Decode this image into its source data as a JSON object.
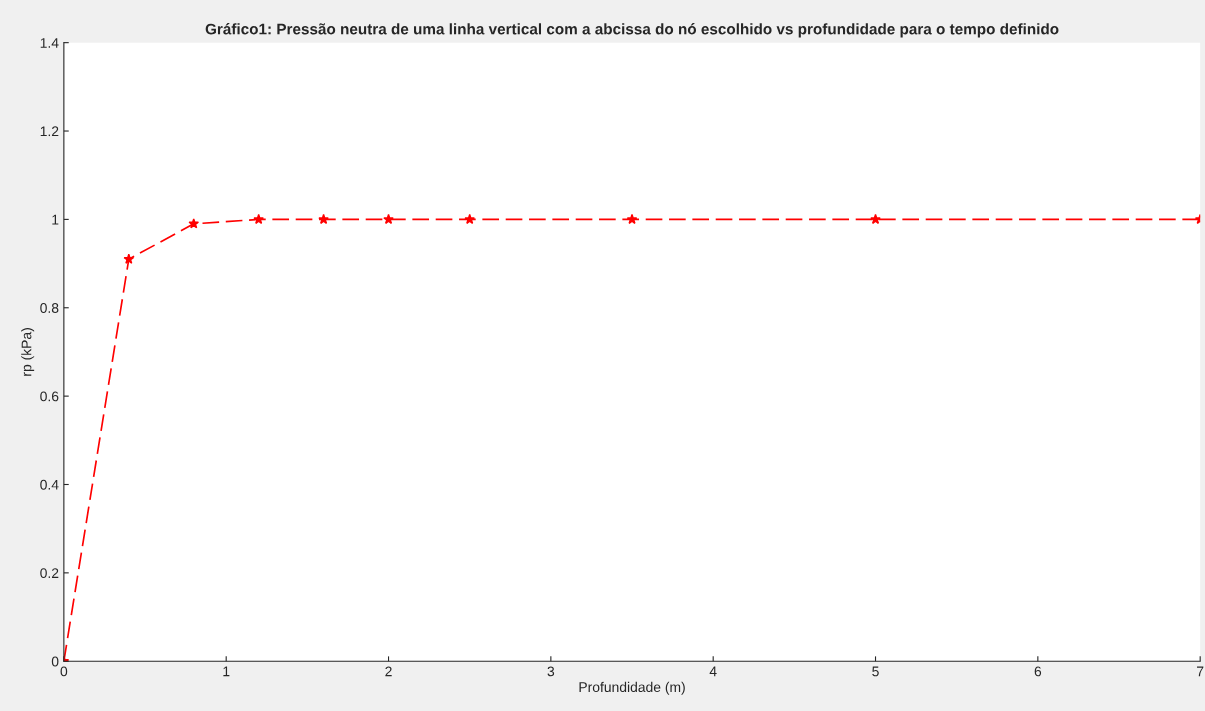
{
  "chart_data": {
    "type": "line",
    "title": "Gráfico1: Pressão neutra de uma linha vertical com a abcissa do nó escolhido vs profundidade para o tempo definido",
    "xlabel": "Profundidade (m)",
    "ylabel": "rp (kPa)",
    "x": [
      0,
      0.4,
      0.8,
      1.2,
      1.6,
      2,
      2.5,
      3.5,
      5,
      7
    ],
    "series": [
      {
        "color": "#ff0000",
        "values": [
          0,
          0.91,
          0.99,
          1,
          1,
          1,
          1,
          1,
          1,
          1
        ]
      }
    ],
    "xlim": [
      0,
      7
    ],
    "ylim": [
      0,
      1.4
    ],
    "xticks": [
      0,
      1,
      2,
      3,
      4,
      5,
      6,
      7
    ],
    "yticks": [
      0,
      0.2,
      0.4,
      0.6,
      0.8,
      1,
      1.2,
      1.4
    ],
    "grid": false,
    "legend": false,
    "marker": "star",
    "line_style": "dashed"
  }
}
